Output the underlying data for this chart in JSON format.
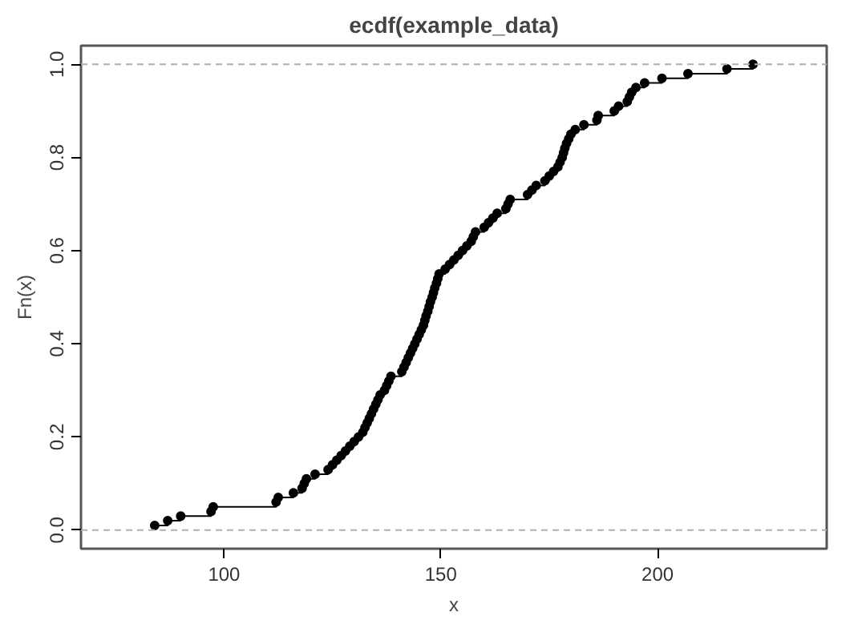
{
  "chart_data": {
    "type": "step",
    "title": "ecdf(example_data)",
    "xlabel": "x",
    "ylabel": "Fn(x)",
    "x": [
      84,
      87,
      90,
      97,
      97.5,
      112,
      112.5,
      116,
      118,
      118.5,
      119,
      121,
      124,
      125,
      126,
      127,
      128,
      129,
      130,
      131,
      132,
      132.5,
      133,
      133.5,
      134,
      134.5,
      135,
      135.5,
      136,
      137,
      137.5,
      138,
      138.5,
      141,
      141.5,
      142,
      142.5,
      143,
      143.5,
      144,
      144.5,
      145,
      145.5,
      146,
      146.3,
      146.6,
      147,
      147.3,
      147.6,
      148,
      148.3,
      148.6,
      149,
      149.3,
      149.6,
      151,
      152,
      153,
      154,
      155,
      156,
      157,
      157.5,
      158,
      160,
      161,
      162,
      163,
      165,
      165.5,
      166,
      170,
      171,
      172,
      174,
      175,
      176,
      177,
      177.5,
      178,
      178.3,
      178.6,
      179,
      179.5,
      180,
      181,
      183,
      186,
      186.3,
      190,
      191,
      193,
      193.5,
      194,
      195,
      197,
      201,
      207,
      216,
      222
    ],
    "series": [
      {
        "color": "#000000",
        "values": [
          0.01,
          0.02,
          0.03,
          0.04,
          0.05,
          0.06,
          0.07,
          0.08,
          0.09,
          0.1,
          0.11,
          0.12,
          0.13,
          0.14,
          0.15,
          0.16,
          0.17,
          0.18,
          0.19,
          0.2,
          0.21,
          0.22,
          0.23,
          0.24,
          0.25,
          0.26,
          0.27,
          0.28,
          0.29,
          0.3,
          0.31,
          0.32,
          0.33,
          0.34,
          0.35,
          0.36,
          0.37,
          0.38,
          0.39,
          0.4,
          0.41,
          0.42,
          0.43,
          0.44,
          0.45,
          0.46,
          0.47,
          0.48,
          0.49,
          0.5,
          0.51,
          0.52,
          0.53,
          0.54,
          0.55,
          0.56,
          0.57,
          0.58,
          0.59,
          0.6,
          0.61,
          0.62,
          0.63,
          0.64,
          0.65,
          0.66,
          0.67,
          0.68,
          0.69,
          0.7,
          0.71,
          0.72,
          0.73,
          0.74,
          0.75,
          0.76,
          0.77,
          0.78,
          0.79,
          0.8,
          0.81,
          0.82,
          0.83,
          0.84,
          0.85,
          0.86,
          0.87,
          0.88,
          0.89,
          0.9,
          0.91,
          0.92,
          0.93,
          0.94,
          0.95,
          0.96,
          0.97,
          0.98,
          0.99,
          1.0
        ]
      }
    ],
    "marker": "circle",
    "line_style": "solid",
    "grid": false,
    "xlim": [
      67,
      239
    ],
    "ylim": [
      -0.04,
      1.04
    ],
    "xticks": [
      100,
      150,
      200
    ],
    "yticks": [
      {
        "value": 0,
        "label": "0.0"
      },
      {
        "value": 0.2,
        "label": "0.2"
      },
      {
        "value": 0.4,
        "label": "0.4"
      },
      {
        "value": 0.6,
        "label": "0.6"
      },
      {
        "value": 0.8,
        "label": "0.8"
      },
      {
        "value": 1,
        "label": "1.0"
      }
    ],
    "ref_lines": [
      {
        "axis": "y",
        "value": 0,
        "color": "#b0b0b0",
        "line_style": "dashed"
      },
      {
        "axis": "y",
        "value": 1,
        "color": "#b0b0b0",
        "line_style": "dashed"
      }
    ]
  }
}
